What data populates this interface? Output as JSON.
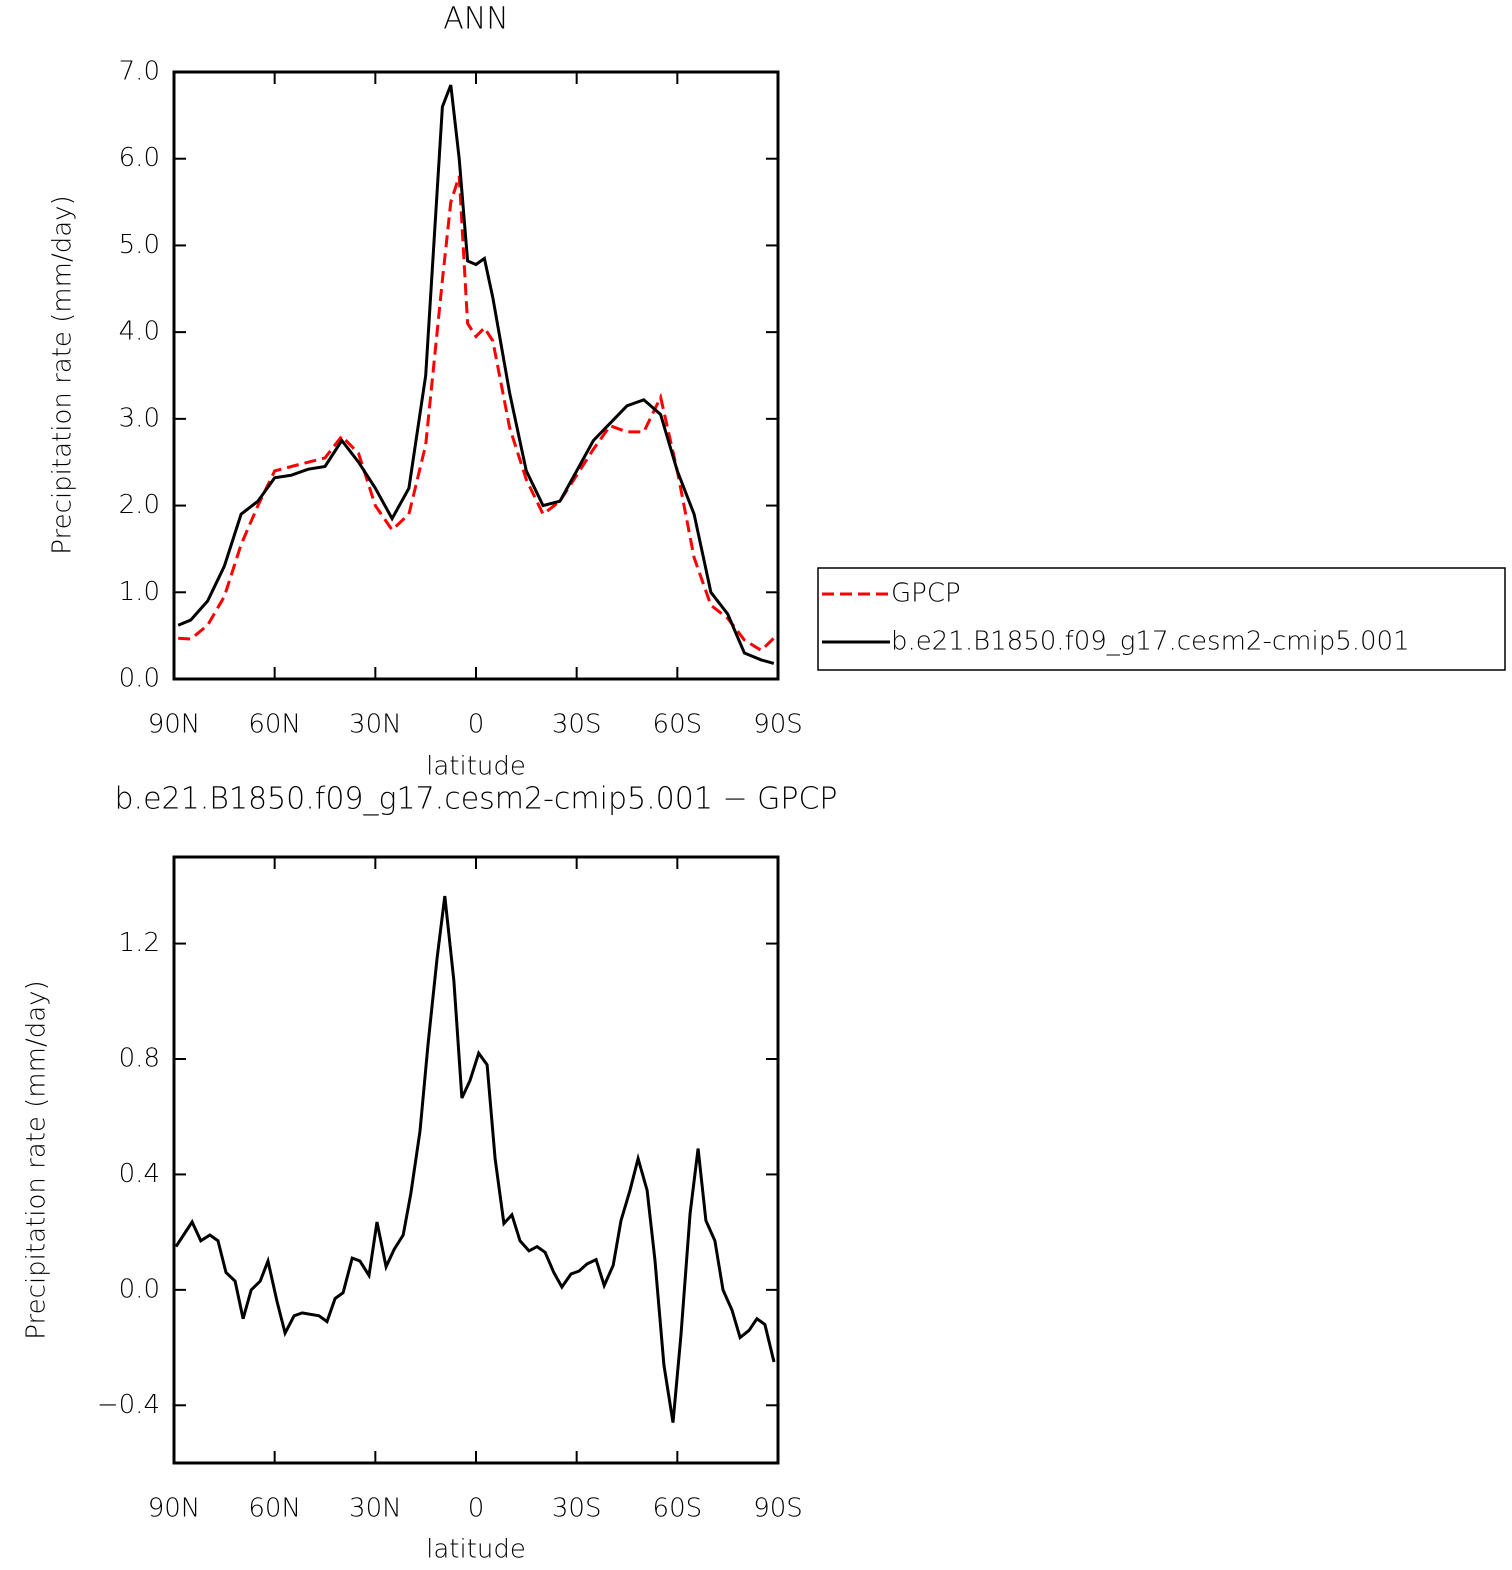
{
  "chart_data": [
    {
      "type": "line",
      "title": "ANN",
      "xlabel": "latitude",
      "ylabel": "Precipitation rate (mm/day)",
      "x": [
        88.75,
        85,
        80,
        75,
        70,
        65,
        60,
        55,
        50,
        45,
        40,
        35,
        30,
        25,
        20,
        15,
        10,
        7.5,
        5,
        2.5,
        0,
        -2.5,
        -5,
        -10,
        -15,
        -20,
        -25,
        -30,
        -35,
        -40,
        -45,
        -50,
        -55,
        -60,
        -65,
        -70,
        -75,
        -80,
        -85,
        -88.75
      ],
      "series": [
        {
          "name": "GPCP",
          "color": "#ff0000",
          "line_style": "dashed",
          "values": [
            0.47,
            0.46,
            0.62,
            0.95,
            1.55,
            2.0,
            2.4,
            2.45,
            2.5,
            2.55,
            2.8,
            2.6,
            2.0,
            1.72,
            1.9,
            2.7,
            4.6,
            5.5,
            5.8,
            4.1,
            3.95,
            4.05,
            3.9,
            2.9,
            2.3,
            1.9,
            2.05,
            2.35,
            2.65,
            2.92,
            2.85,
            2.85,
            3.25,
            2.4,
            1.4,
            0.85,
            0.7,
            0.45,
            0.33,
            0.47
          ]
        },
        {
          "name": "b.e21.B1850.f09_g17.cesm2-cmip5.001",
          "color": "#000000",
          "line_style": "solid",
          "values": [
            0.62,
            0.68,
            0.9,
            1.3,
            1.9,
            2.05,
            2.32,
            2.35,
            2.42,
            2.45,
            2.75,
            2.5,
            2.2,
            1.85,
            2.2,
            3.5,
            6.6,
            6.85,
            6.0,
            4.82,
            4.78,
            4.85,
            4.4,
            3.3,
            2.4,
            2.0,
            2.05,
            2.4,
            2.75,
            2.95,
            3.15,
            3.22,
            3.05,
            2.4,
            1.9,
            1.0,
            0.75,
            0.3,
            0.22,
            0.18
          ]
        }
      ],
      "xlim": [
        90,
        -90
      ],
      "xticks": [
        {
          "value": 90,
          "label": "90N"
        },
        {
          "value": 60,
          "label": "60N"
        },
        {
          "value": 30,
          "label": "30N"
        },
        0,
        {
          "value": -30,
          "label": "30S"
        },
        {
          "value": -60,
          "label": "60S"
        },
        {
          "value": -90,
          "label": "90S"
        }
      ],
      "ylim": [
        0,
        7
      ],
      "yticks": [
        {
          "value": 0,
          "label": "0.0"
        },
        {
          "value": 1,
          "label": "1.0"
        },
        {
          "value": 2,
          "label": "2.0"
        },
        {
          "value": 3,
          "label": "3.0"
        },
        {
          "value": 4,
          "label": "4.0"
        },
        {
          "value": 5,
          "label": "5.0"
        },
        {
          "value": 6,
          "label": "6.0"
        },
        {
          "value": 7,
          "label": "7.0"
        }
      ],
      "legend": "right"
    },
    {
      "type": "line",
      "title": "b.e21.B1850.f09_g17.cesm2-cmip5.001 − GPCP",
      "xlabel": "latitude",
      "ylabel": "Precipitation rate (mm/day)",
      "x": [
        89.4,
        84.6,
        82.0,
        79.3,
        76.9,
        74.5,
        71.8,
        69.4,
        67.0,
        64.3,
        62.0,
        59.3,
        56.9,
        54.2,
        51.8,
        46.8,
        44.4,
        42.0,
        39.6,
        36.9,
        34.6,
        31.9,
        29.5,
        26.8,
        24.4,
        21.7,
        19.4,
        16.7,
        14.3,
        11.6,
        9.3,
        6.6,
        4.2,
        1.8,
        -0.8,
        -3.3,
        -5.7,
        -8.3,
        -10.7,
        -13.1,
        -15.8,
        -18.2,
        -20.6,
        -23.2,
        -25.6,
        -28.3,
        -30.7,
        -33.1,
        -35.8,
        -38.2,
        -40.9,
        -43.2,
        -45.9,
        -48.3,
        -51.0,
        -53.3,
        -56.0,
        -58.7,
        -61.1,
        -63.8,
        -66.2,
        -68.5,
        -71.2,
        -73.6,
        -76.3,
        -78.7,
        -81.4,
        -83.7,
        -86.1,
        -88.8
      ],
      "series": [
        {
          "color": "#000000",
          "line_style": "solid",
          "values": [
            0.15,
            0.235,
            0.17,
            0.19,
            0.17,
            0.06,
            0.03,
            -0.1,
            0.0,
            0.03,
            0.1,
            -0.04,
            -0.15,
            -0.09,
            -0.08,
            -0.09,
            -0.11,
            -0.03,
            -0.01,
            0.11,
            0.1,
            0.05,
            0.235,
            0.08,
            0.14,
            0.19,
            0.335,
            0.55,
            0.85,
            1.15,
            1.365,
            1.07,
            0.665,
            0.725,
            0.82,
            0.78,
            0.455,
            0.23,
            0.26,
            0.17,
            0.135,
            0.15,
            0.13,
            0.06,
            0.01,
            0.055,
            0.065,
            0.09,
            0.105,
            0.015,
            0.085,
            0.24,
            0.345,
            0.455,
            0.345,
            0.105,
            -0.26,
            -0.46,
            -0.155,
            0.265,
            0.49,
            0.24,
            0.17,
            0.0,
            -0.07,
            -0.165,
            -0.14,
            -0.1,
            -0.12,
            -0.25
          ]
        }
      ],
      "xlim": [
        90,
        -90
      ],
      "xticks": [
        {
          "value": 90,
          "label": "90N"
        },
        {
          "value": 60,
          "label": "60N"
        },
        {
          "value": 30,
          "label": "30N"
        },
        0,
        {
          "value": -30,
          "label": "30S"
        },
        {
          "value": -60,
          "label": "60S"
        },
        {
          "value": -90,
          "label": "90S"
        }
      ],
      "ylim": [
        -0.6,
        1.5
      ],
      "yticks": [
        {
          "value": -0.4,
          "label": "−0.4"
        },
        {
          "value": 0,
          "label": "0.0"
        },
        0.4,
        0.8,
        1.2
      ]
    }
  ]
}
